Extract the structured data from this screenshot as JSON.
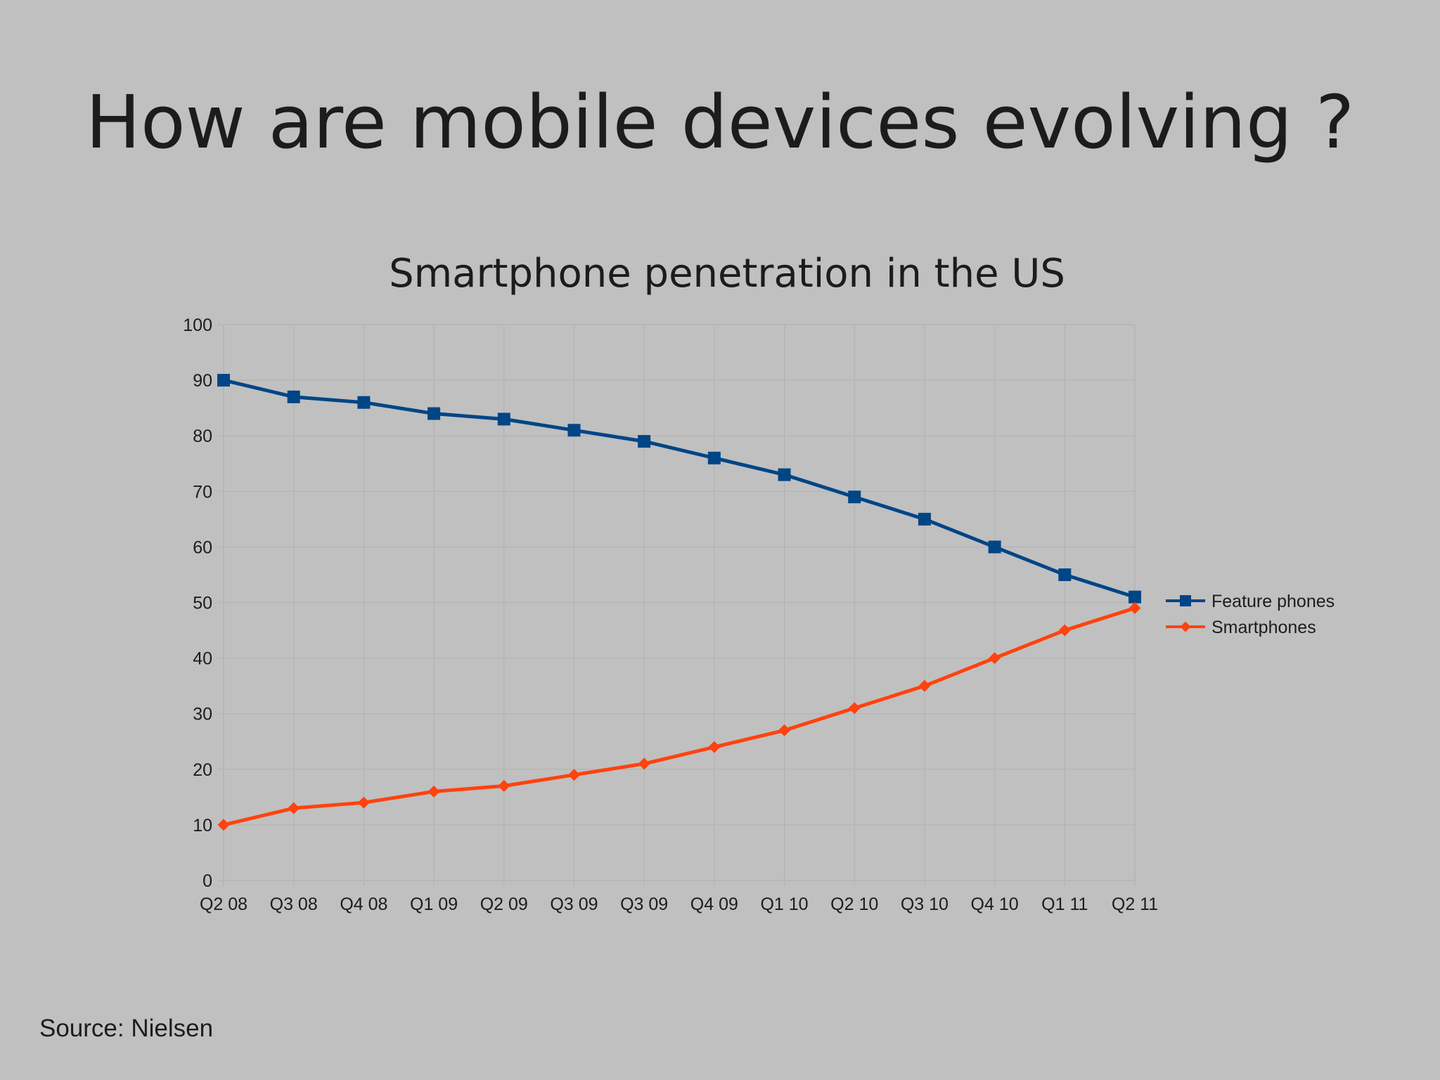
{
  "slide": {
    "title": "How are mobile devices evolving ?",
    "source": "Source: Nielsen"
  },
  "colors": {
    "background": "#c0c0c0",
    "feature_phones": "#004586",
    "smartphones": "#ff420e",
    "text": "#1c1c1c"
  },
  "chart_data": {
    "type": "line",
    "title": "Smartphone penetration in the US",
    "xlabel": "",
    "ylabel": "",
    "categories": [
      "Q2 08",
      "Q3 08",
      "Q4 08",
      "Q1 09",
      "Q2 09",
      "Q3 09",
      "Q3 09",
      "Q4 09",
      "Q1 10",
      "Q2 10",
      "Q3 10",
      "Q4 10",
      "Q1 11",
      "Q2 11"
    ],
    "ylim": [
      0,
      100
    ],
    "yticks": [
      0,
      10,
      20,
      30,
      40,
      50,
      60,
      70,
      80,
      90,
      100
    ],
    "grid": true,
    "legend_position": "right",
    "series": [
      {
        "name": "Feature phones",
        "marker": "square",
        "color": "#004586",
        "values": [
          90,
          87,
          86,
          84,
          83,
          81,
          79,
          76,
          73,
          69,
          65,
          60,
          55,
          51
        ]
      },
      {
        "name": "Smartphones",
        "marker": "diamond",
        "color": "#ff420e",
        "values": [
          10,
          13,
          14,
          16,
          17,
          19,
          21,
          24,
          27,
          31,
          35,
          40,
          45,
          49
        ]
      }
    ]
  }
}
